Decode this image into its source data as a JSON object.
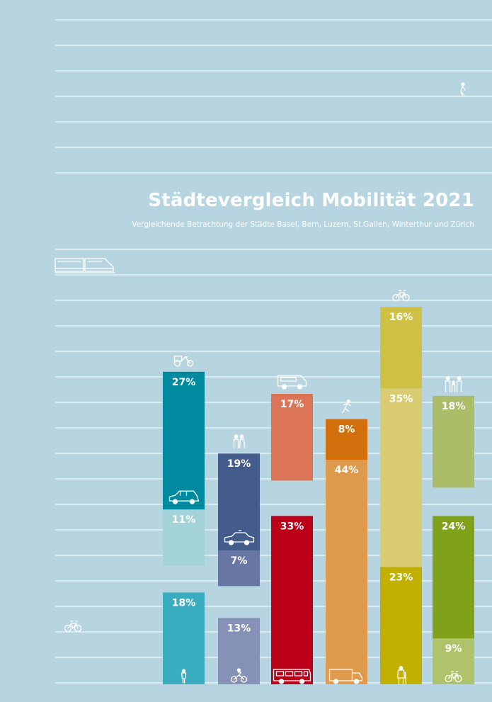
{
  "title": "Städtevergleich Mobilität 2021",
  "subtitle": "Vergleichende Betrachtung der Städte Basel, Bern, Luzern,  St.Gallen, Winterthur und Zürich",
  "colors": {
    "background": "#b7d5e1",
    "lines": "#ffffff",
    "labels": "#ffffff"
  },
  "chart_data": {
    "type": "bar",
    "stacked": true,
    "grid": true,
    "legend": "none",
    "columns": [
      {
        "segments": [
          {
            "value": 18,
            "label": "18%",
            "color": "#3aaec0",
            "icon": "pedestrian-icon"
          },
          {
            "value": 11,
            "label": "11%",
            "color": "#a4d2d9",
            "icon": "car-icon"
          },
          {
            "value": 27,
            "label": "27%",
            "color": "#008aa0",
            "icon": "cargo-bike-icon"
          }
        ]
      },
      {
        "segments": [
          {
            "value": 13,
            "label": "13%",
            "color": "#8691b7",
            "icon": "motorcycle-icon"
          },
          {
            "value": 7,
            "label": "7%",
            "color": "#6876a4",
            "icon": "taxi-icon"
          },
          {
            "value": 19,
            "label": "19%",
            "color": "#445c8c",
            "icon": "couple-icon"
          }
        ]
      },
      {
        "segments": [
          {
            "value": 33,
            "label": "33%",
            "color": "#bd0019",
            "icon": "bus-icon"
          },
          {
            "value": 17,
            "label": "17%",
            "color": "#dc7556",
            "icon": "van-icon"
          }
        ]
      },
      {
        "segments": [
          {
            "value": 44,
            "label": "44%",
            "color": "#df9a4e",
            "icon": "truck-icon"
          },
          {
            "value": 8,
            "label": "8%",
            "color": "#d3700e",
            "icon": "runner-icon"
          }
        ]
      },
      {
        "segments": [
          {
            "value": 23,
            "label": "23%",
            "color": "#c1b000",
            "icon": "hiker-icon"
          },
          {
            "value": 35,
            "label": "35%",
            "color": "#d9cb72",
            "icon": "none"
          },
          {
            "value": 16,
            "label": "16%",
            "color": "#cfc046",
            "icon": "bicycle-icon"
          }
        ]
      },
      {
        "segments": [
          {
            "value": 9,
            "label": "9%",
            "color": "#aec36b",
            "icon": "bicycle-icon"
          },
          {
            "value": 24,
            "label": "24%",
            "color": "#80a11a",
            "icon": "none"
          },
          {
            "value": 18,
            "label": "18%",
            "color": "#abbd69",
            "icon": "family-icon"
          }
        ]
      }
    ]
  },
  "decor_icons": [
    "train-icon",
    "bicycle-icon",
    "walker-icon"
  ]
}
